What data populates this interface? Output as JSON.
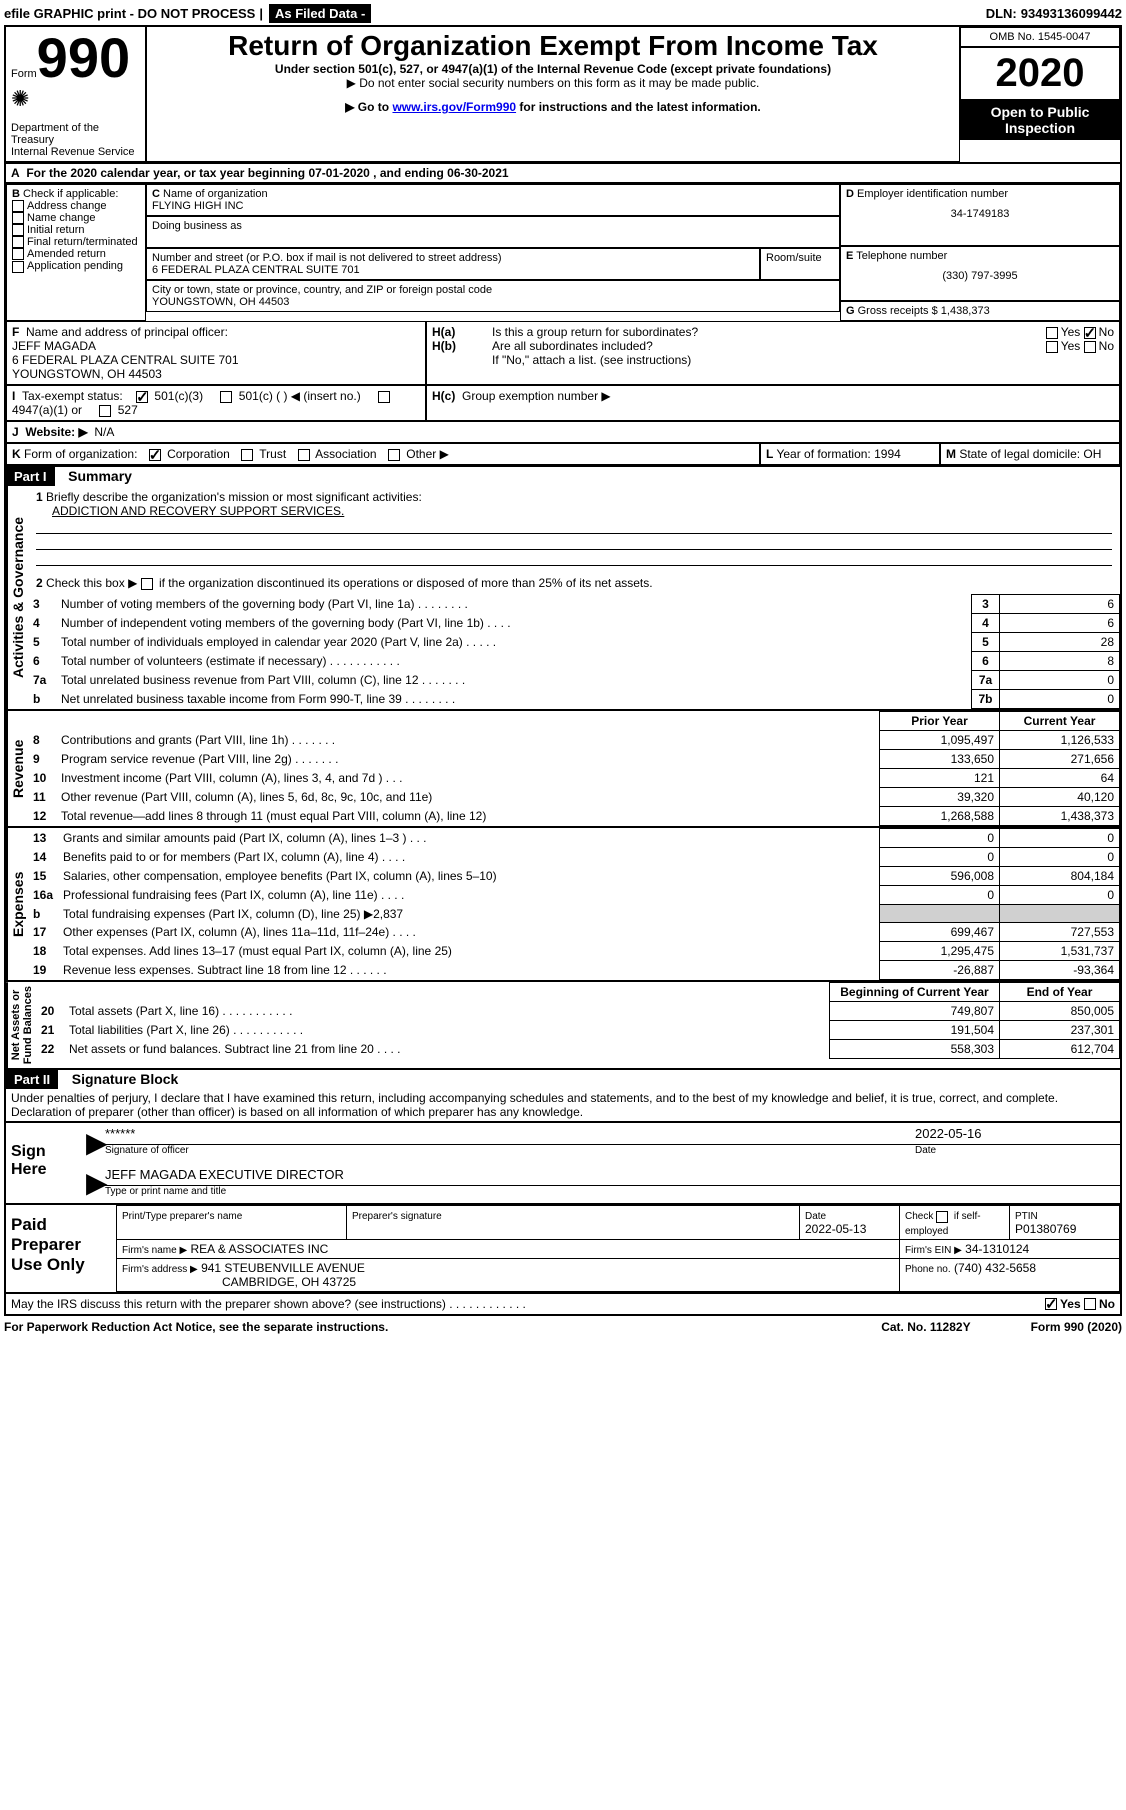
{
  "header": {
    "efile": "efile GRAPHIC print - DO NOT PROCESS",
    "asFiled": "As Filed Data -",
    "dln_label": "DLN:",
    "dln": "93493136099442"
  },
  "form": {
    "prefix": "Form",
    "num": "990",
    "dept1": "Department of the Treasury",
    "dept2": "Internal Revenue Service",
    "title": "Return of Organization Exempt From Income Tax",
    "sub1": "Under section 501(c), 527, or 4947(a)(1) of the Internal Revenue Code (except private foundations)",
    "sub2": "▶ Do not enter social security numbers on this form as it may be made public.",
    "sub3a": "▶ Go to ",
    "sub3link": "www.irs.gov/Form990",
    "sub3b": " for instructions and the latest information.",
    "omb": "OMB No. 1545-0047",
    "year": "2020",
    "open": "Open to Public Inspection"
  },
  "A": {
    "text": "For the 2020 calendar year, or tax year beginning 07-01-2020    , and ending 06-30-2021"
  },
  "B": {
    "label": "Check if applicable:",
    "opts": [
      "Address change",
      "Name change",
      "Initial return",
      "Final return/terminated",
      "Amended return",
      "Application pending"
    ]
  },
  "C": {
    "nameLabel": "Name of organization",
    "name": "FLYING HIGH INC",
    "dbaLabel": "Doing business as",
    "streetLabel": "Number and street (or P.O. box if mail is not delivered to street address)",
    "roomLabel": "Room/suite",
    "street": "6 FEDERAL PLAZA CENTRAL SUITE 701",
    "cityLabel": "City or town, state or province, country, and ZIP or foreign postal code",
    "city": "YOUNGSTOWN, OH  44503"
  },
  "D": {
    "label": "Employer identification number",
    "val": "34-1749183"
  },
  "E": {
    "label": "Telephone number",
    "val": "(330) 797-3995"
  },
  "G": {
    "label": "Gross receipts $",
    "val": "1,438,373"
  },
  "F": {
    "label": "Name and address of principal officer:",
    "name": "JEFF MAGADA",
    "addr1": "6 FEDERAL PLAZA CENTRAL SUITE 701",
    "addr2": "YOUNGSTOWN, OH  44503"
  },
  "H": {
    "a": "Is this a group return for subordinates?",
    "b": "Are all subordinates included?",
    "note": "If \"No,\" attach a list. (see instructions)",
    "c": "Group exemption number ▶",
    "yes": "Yes",
    "no": "No"
  },
  "I": {
    "label": "Tax-exempt status:",
    "o1": "501(c)(3)",
    "o2": "501(c) (   ) ◀ (insert no.)",
    "o3": "4947(a)(1) or",
    "o4": "527"
  },
  "J": {
    "label": "Website: ▶",
    "val": "N/A"
  },
  "K": {
    "label": "Form of organization:",
    "o1": "Corporation",
    "o2": "Trust",
    "o3": "Association",
    "o4": "Other ▶"
  },
  "L": {
    "label": "Year of formation:",
    "val": "1994"
  },
  "M": {
    "label": "State of legal domicile:",
    "val": "OH"
  },
  "part1": {
    "label": "Part I",
    "title": "Summary",
    "l1": "Briefly describe the organization's mission or most significant activities:",
    "l1val": "ADDICTION AND RECOVERY SUPPORT SERVICES.",
    "l2": "Check this box ▶        if the organization discontinued its operations or disposed of more than 25% of its net assets.",
    "rows_gov": [
      {
        "n": "3",
        "t": "Number of voting members of the governing body (Part VI, line 1a)   .     .     .     .     .     .     .     .",
        "c": "3",
        "v": "6"
      },
      {
        "n": "4",
        "t": "Number of independent voting members of the governing body (Part VI, line 1b)   .     .     .     .",
        "c": "4",
        "v": "6"
      },
      {
        "n": "5",
        "t": "Total number of individuals employed in calendar year 2020 (Part V, line 2a)    .     .     .     .     .",
        "c": "5",
        "v": "28"
      },
      {
        "n": "6",
        "t": "Total number of volunteers (estimate if necessary)   .     .     .     .     .     .     .     .     .     .     .",
        "c": "6",
        "v": "8"
      },
      {
        "n": "7a",
        "t": "Total unrelated business revenue from Part VIII, column (C), line 12   .     .     .     .     .     .     .",
        "c": "7a",
        "v": "0"
      },
      {
        "n": "b",
        "t": "Net unrelated business taxable income from Form 990-T, line 39    .     .     .     .     .     .     .     .",
        "c": "7b",
        "v": "0"
      }
    ],
    "hdr_prior": "Prior Year",
    "hdr_curr": "Current Year",
    "rows_rev": [
      {
        "n": "8",
        "t": "Contributions and grants (Part VIII, line 1h)   .     .     .     .     .     .     .",
        "p": "1,095,497",
        "c": "1,126,533"
      },
      {
        "n": "9",
        "t": "Program service revenue (Part VIII, line 2g)    .     .     .     .     .     .     .",
        "p": "133,650",
        "c": "271,656"
      },
      {
        "n": "10",
        "t": "Investment income (Part VIII, column (A), lines 3, 4, and 7d )    .     .     .",
        "p": "121",
        "c": "64"
      },
      {
        "n": "11",
        "t": "Other revenue (Part VIII, column (A), lines 5, 6d, 8c, 9c, 10c, and 11e)",
        "p": "39,320",
        "c": "40,120"
      },
      {
        "n": "12",
        "t": "Total revenue—add lines 8 through 11 (must equal Part VIII, column (A), line 12)",
        "p": "1,268,588",
        "c": "1,438,373"
      }
    ],
    "rows_exp": [
      {
        "n": "13",
        "t": "Grants and similar amounts paid (Part IX, column (A), lines 1–3 )   .     .     .",
        "p": "0",
        "c": "0"
      },
      {
        "n": "14",
        "t": "Benefits paid to or for members (Part IX, column (A), line 4)   .     .     .     .",
        "p": "0",
        "c": "0"
      },
      {
        "n": "15",
        "t": "Salaries, other compensation, employee benefits (Part IX, column (A), lines 5–10)",
        "p": "596,008",
        "c": "804,184"
      },
      {
        "n": "16a",
        "t": "Professional fundraising fees (Part IX, column (A), line 11e)    .     .     .     .",
        "p": "0",
        "c": "0"
      },
      {
        "n": "b",
        "t": "Total fundraising expenses (Part IX, column (D), line 25) ▶2,837",
        "p": "",
        "c": "",
        "shade": true
      },
      {
        "n": "17",
        "t": "Other expenses (Part IX, column (A), lines 11a–11d, 11f–24e)    .     .     .     .",
        "p": "699,467",
        "c": "727,553"
      },
      {
        "n": "18",
        "t": "Total expenses. Add lines 13–17 (must equal Part IX, column (A), line 25)",
        "p": "1,295,475",
        "c": "1,531,737"
      },
      {
        "n": "19",
        "t": "Revenue less expenses. Subtract line 18 from line 12  .     .     .     .     .     .",
        "p": "-26,887",
        "c": "-93,364"
      }
    ],
    "hdr_beg": "Beginning of Current Year",
    "hdr_end": "End of Year",
    "rows_na": [
      {
        "n": "20",
        "t": "Total assets (Part X, line 16)    .     .     .     .     .     .     .     .     .     .     .",
        "p": "749,807",
        "c": "850,005"
      },
      {
        "n": "21",
        "t": "Total liabilities (Part X, line 26)  .     .     .     .     .     .     .     .     .     .     .",
        "p": "191,504",
        "c": "237,301"
      },
      {
        "n": "22",
        "t": "Net assets or fund balances. Subtract line 21 from line 20  .     .     .     .",
        "p": "558,303",
        "c": "612,704"
      }
    ]
  },
  "part2": {
    "label": "Part II",
    "title": "Signature Block",
    "decl": "Under penalties of perjury, I declare that I have examined this return, including accompanying schedules and statements, and to the best of my knowledge and belief, it is true, correct, and complete. Declaration of preparer (other than officer) is based on all information of which preparer has any knowledge."
  },
  "sign": {
    "label": "Sign Here",
    "stars": "******",
    "sigLabel": "Signature of officer",
    "date": "2022-05-16",
    "dateLabel": "Date",
    "name": "JEFF MAGADA  EXECUTIVE DIRECTOR",
    "nameLabel": "Type or print name and title"
  },
  "prep": {
    "label": "Paid Preparer Use Only",
    "c1": "Print/Type preparer's name",
    "c2": "Preparer's signature",
    "c3": "Date",
    "c3v": "2022-05-13",
    "c4": "Check        if self-employed",
    "c5": "PTIN",
    "c5v": "P01380769",
    "firm": "Firm's name    ▶",
    "firmv": "REA & ASSOCIATES INC",
    "ein": "Firm's EIN ▶",
    "einv": "34-1310124",
    "addr": "Firm's address ▶",
    "addrv1": "941 STEUBENVILLE AVENUE",
    "addrv2": "CAMBRIDGE, OH  43725",
    "phone": "Phone no.",
    "phonev": "(740) 432-5658"
  },
  "footer": {
    "q": "May the IRS discuss this return with the preparer shown above? (see instructions)   .     .     .     .     .     .     .     .     .     .     .     .",
    "yes": "Yes",
    "no": "No",
    "pra": "For Paperwork Reduction Act Notice, see the separate instructions.",
    "cat": "Cat. No. 11282Y",
    "form": "Form 990 (2020)"
  }
}
